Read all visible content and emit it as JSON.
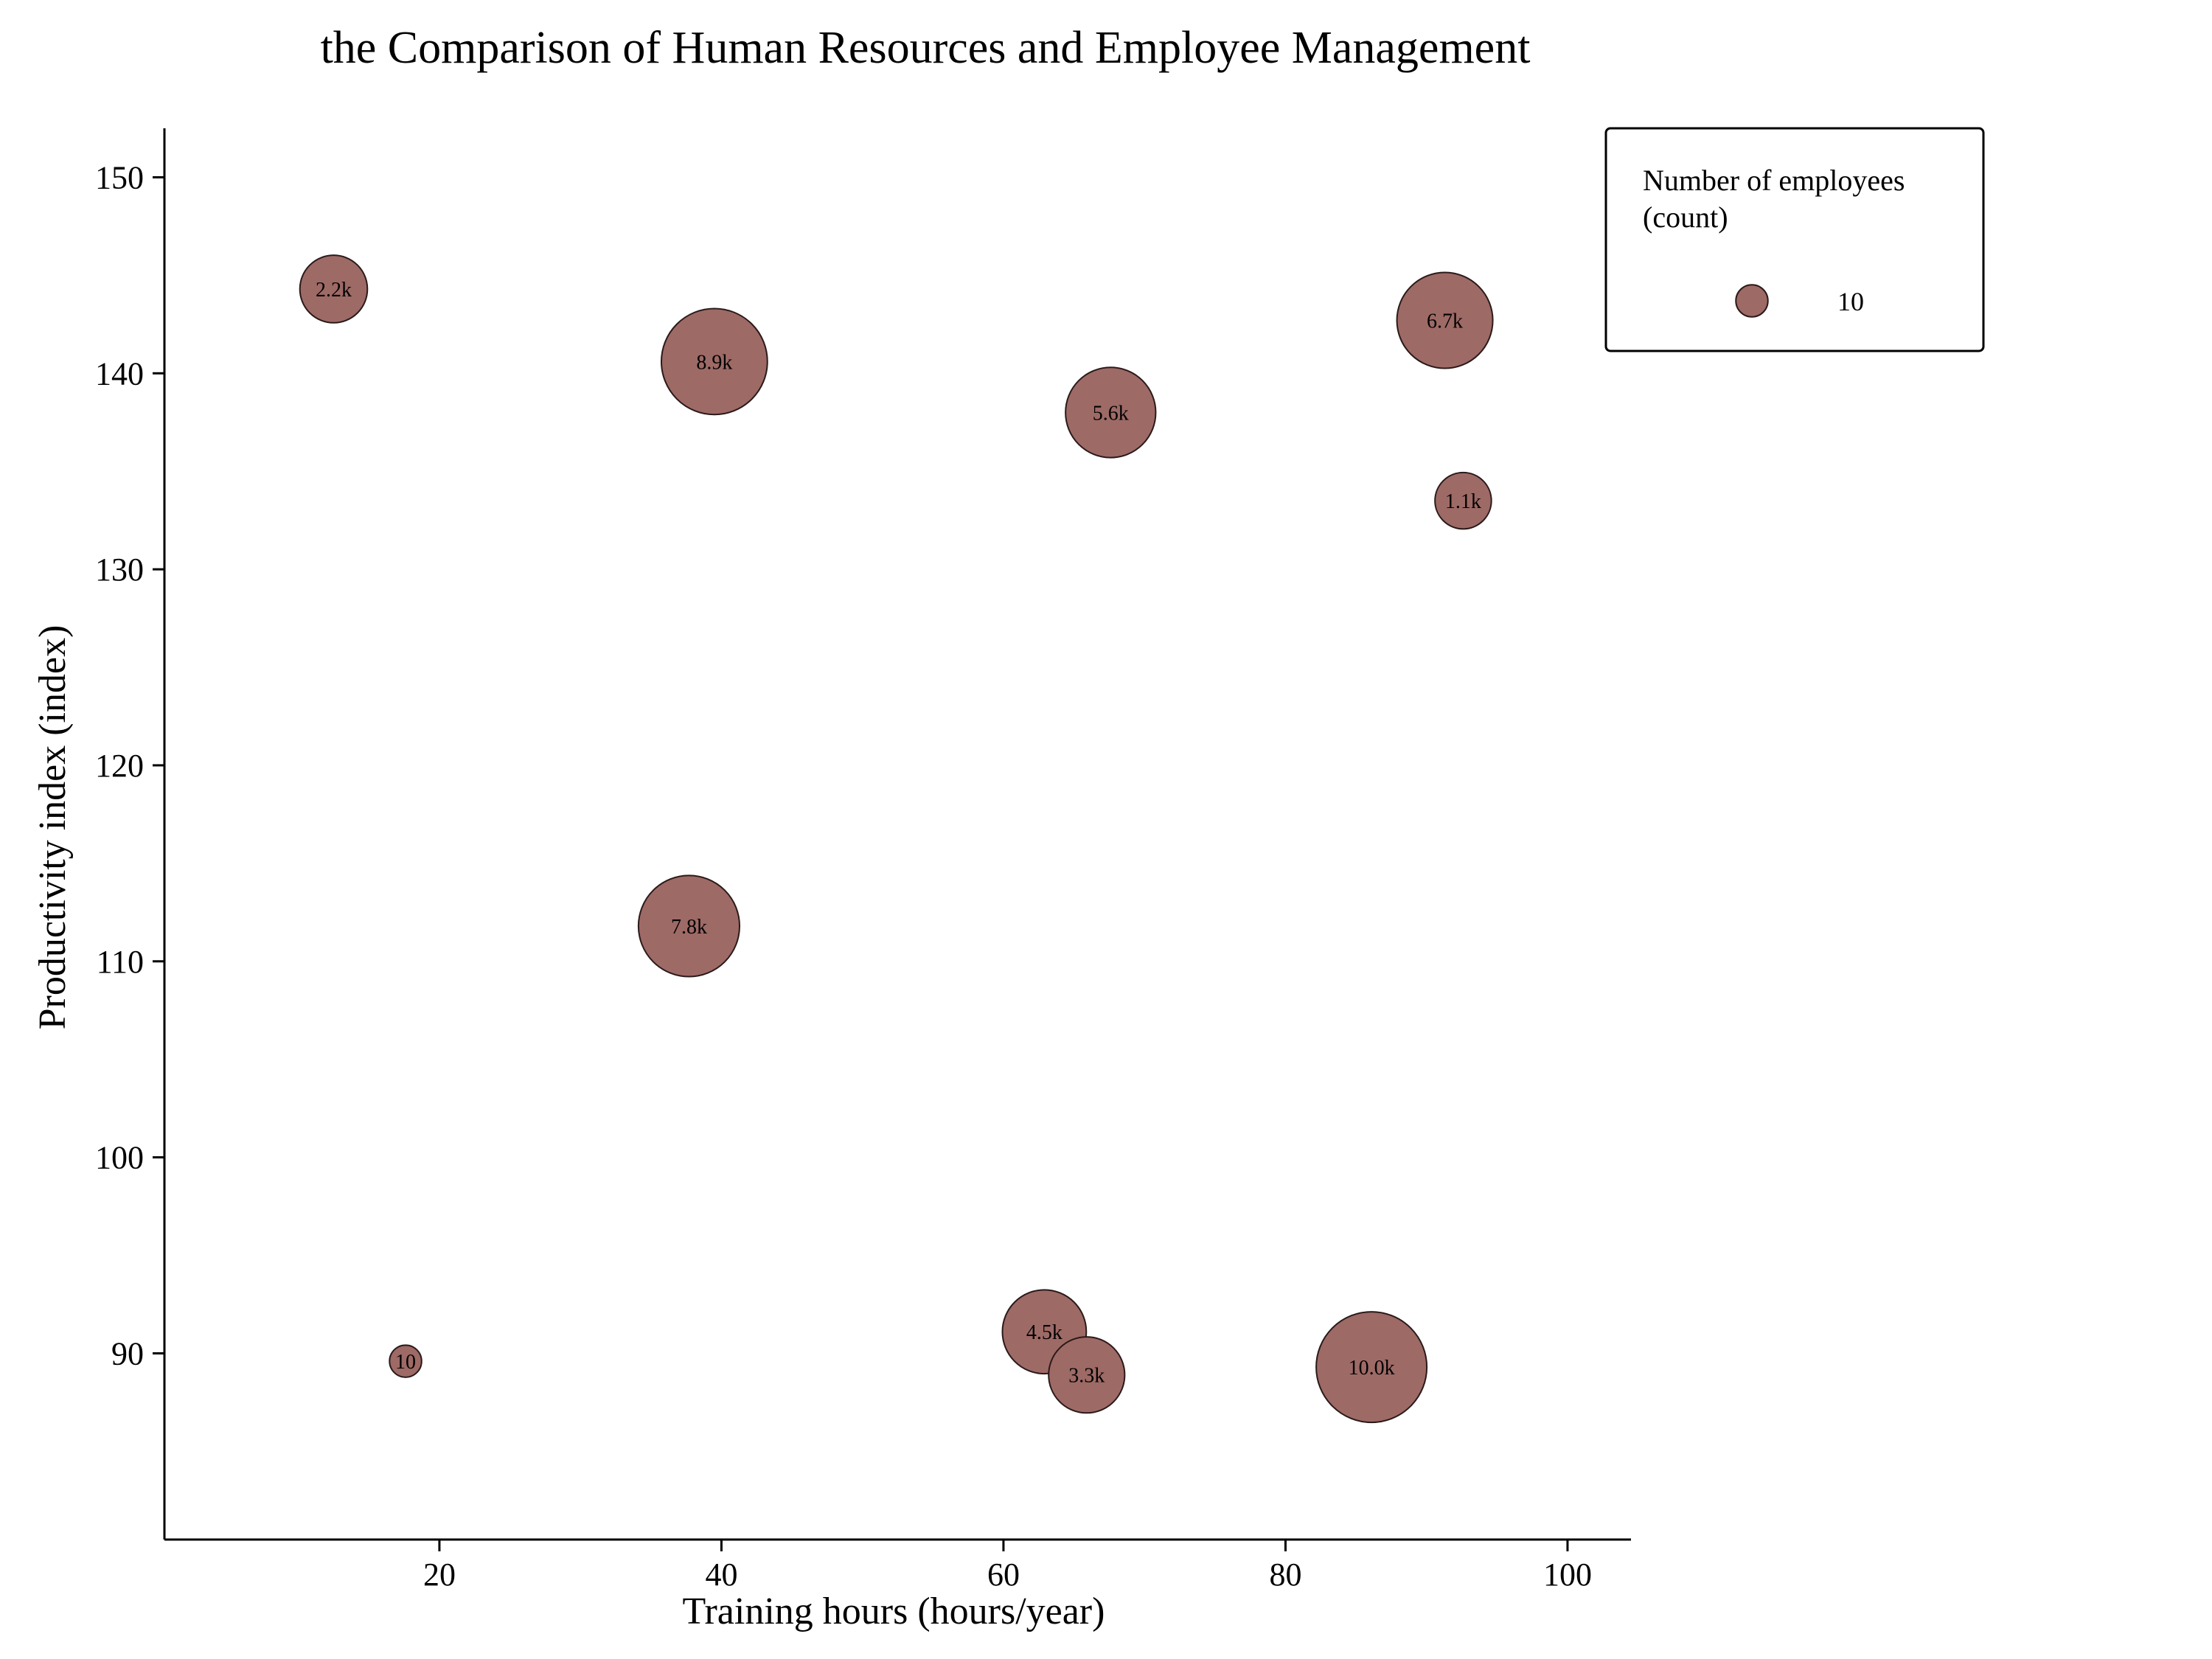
{
  "chart_data": {
    "type": "scatter",
    "title": "the Comparison of Human Resources and Employee Management",
    "xlabel": "Training hours (hours/year)",
    "ylabel": "Productivity index (index)",
    "xlim": [
      0.5,
      104.5
    ],
    "ylim": [
      80.5,
      152.5
    ],
    "xticks": [
      20,
      40,
      60,
      80,
      100
    ],
    "yticks": [
      90,
      100,
      110,
      120,
      130,
      140,
      150
    ],
    "grid": false,
    "legend": {
      "title": "Number of employees\n(count)",
      "entries": [
        {
          "label": "10",
          "size": 10
        }
      ],
      "placement": "top-right"
    },
    "colors": {
      "bubble": "#9e6a66",
      "edge": "#2a1a1a"
    },
    "points": [
      {
        "x": 12.5,
        "y": 144.3,
        "size": 2200,
        "label": "2.2k"
      },
      {
        "x": 39.5,
        "y": 140.6,
        "size": 8900,
        "label": "8.9k"
      },
      {
        "x": 67.6,
        "y": 138.0,
        "size": 5600,
        "label": "5.6k"
      },
      {
        "x": 91.3,
        "y": 142.7,
        "size": 6700,
        "label": "6.7k"
      },
      {
        "x": 92.6,
        "y": 133.5,
        "size": 1100,
        "label": "1.1k"
      },
      {
        "x": 37.7,
        "y": 111.8,
        "size": 7800,
        "label": "7.8k"
      },
      {
        "x": 17.6,
        "y": 89.6,
        "size": 10,
        "label": "10"
      },
      {
        "x": 62.9,
        "y": 91.1,
        "size": 4500,
        "label": "4.5k"
      },
      {
        "x": 65.9,
        "y": 88.9,
        "size": 3300,
        "label": "3.3k"
      },
      {
        "x": 86.1,
        "y": 89.3,
        "size": 10000,
        "label": "10.0k"
      }
    ]
  }
}
